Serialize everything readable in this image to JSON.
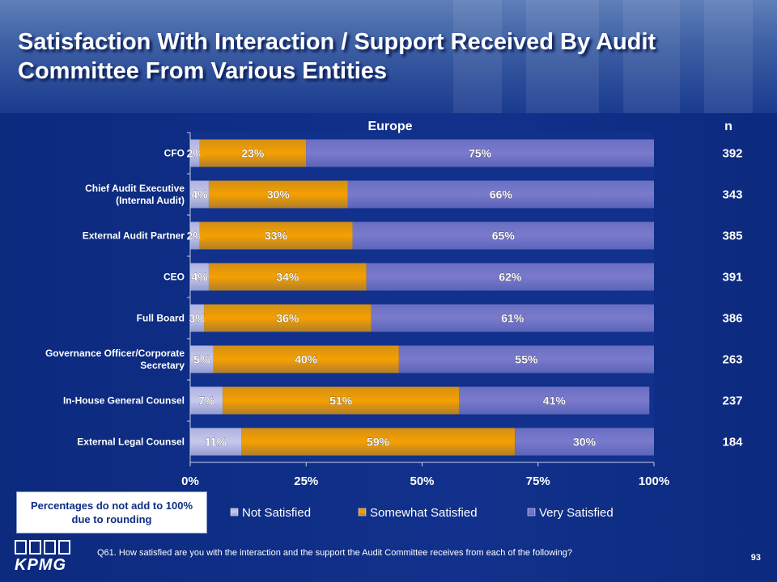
{
  "page": {
    "title": "Satisfaction With Interaction / Support Received By Audit Committee From Various Entities",
    "page_number": "93",
    "logo_text": "KPMG",
    "note": "Percentages do not add to 100% due to rounding",
    "question": "Q61. How satisfied are you with the interaction and the support the Audit Committee receives from each of the following?"
  },
  "colors": {
    "not_satisfied": "#c8c8ec",
    "somewhat_satisfied": "#f5a000",
    "very_satisfied": "#7a7acc",
    "background": "#0f2d82"
  },
  "chart_data": {
    "type": "bar",
    "orientation": "horizontal",
    "stacked": true,
    "title": "Europe",
    "n_header": "n",
    "categories": [
      "CFO",
      "Chief Audit Executive (Internal Audit)",
      "External Audit Partner",
      "CEO",
      "Full Board",
      "Governance Officer/Corporate Secretary",
      "In-House General Counsel",
      "External Legal Counsel"
    ],
    "series": [
      {
        "name": "Not Satisfied",
        "values": [
          2,
          4,
          2,
          4,
          3,
          5,
          7,
          11
        ],
        "labels": [
          "2%",
          "4%",
          "2%",
          "4%",
          "3%",
          "5%",
          "7%",
          "11%"
        ]
      },
      {
        "name": "Somewhat Satisfied",
        "values": [
          23,
          30,
          33,
          34,
          36,
          40,
          51,
          59
        ],
        "labels": [
          "23%",
          "30%",
          "33%",
          "34%",
          "36%",
          "40%",
          "51%",
          "59%"
        ]
      },
      {
        "name": "Very Satisfied",
        "values": [
          75,
          66,
          65,
          62,
          61,
          55,
          41,
          30
        ],
        "labels": [
          "75%",
          "66%",
          "65%",
          "62%",
          "61%",
          "55%",
          "41%",
          "30%"
        ]
      }
    ],
    "n_values": [
      "392",
      "343",
      "385",
      "391",
      "386",
      "263",
      "237",
      "184"
    ],
    "xlim": [
      0,
      100
    ],
    "x_ticks": [
      0,
      25,
      50,
      75,
      100
    ],
    "x_tick_labels": [
      "0%",
      "25%",
      "50%",
      "75%",
      "100%"
    ],
    "legend_position": "bottom",
    "grid": false
  }
}
